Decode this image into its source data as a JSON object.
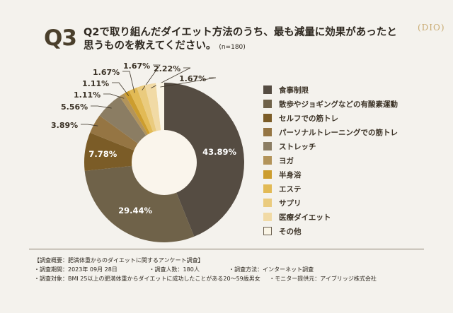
{
  "header": {
    "q_number": "Q3",
    "title_line1": "Q2で取り組んだダイエット方法のうち、最も減量に効果があったと",
    "title_line2": "思うものを教えてください。",
    "sample_size": "(n=180)",
    "logo": "DIO"
  },
  "chart_data": {
    "type": "pie",
    "donut": true,
    "start": "top",
    "direction": "clockwise",
    "legend_position": "right",
    "categories": [
      "食事制限",
      "散歩やジョギングなどの有酸素運動",
      "セルフでの筋トレ",
      "パーソナルトレーニングでの筋トレ",
      "ストレッチ",
      "ヨガ",
      "半身浴",
      "エステ",
      "サプリ",
      "医療ダイエット",
      "その他"
    ],
    "values": [
      43.89,
      29.44,
      7.78,
      3.89,
      5.56,
      1.11,
      1.11,
      1.67,
      1.67,
      2.22,
      1.67
    ],
    "labels": [
      "43.89%",
      "29.44%",
      "7.78%",
      "3.89%",
      "5.56%",
      "1.11%",
      "1.11%",
      "1.67%",
      "1.67%",
      "2.22%",
      "1.67%"
    ],
    "colors": [
      "#554c42",
      "#6f6249",
      "#7b5c27",
      "#957543",
      "#8b7d63",
      "#b3945a",
      "#cc9d2e",
      "#e2ba55",
      "#eacb7e",
      "#f1daa5",
      "#faf5e6"
    ]
  },
  "footer": {
    "heading": "【調査概要：肥満体重からのダイエットに関するアンケート調査】",
    "period": "・調査期間：2023年 09月 28日",
    "respondents": "・調査人数：180人",
    "method": "・調査方法：インターネット調査",
    "target": "・調査対象：BMI 25以上の肥満体重からダイエットに成功したことがある20～59歳男女",
    "provider": "・モニター提供元：アイブリッジ株式会社"
  }
}
